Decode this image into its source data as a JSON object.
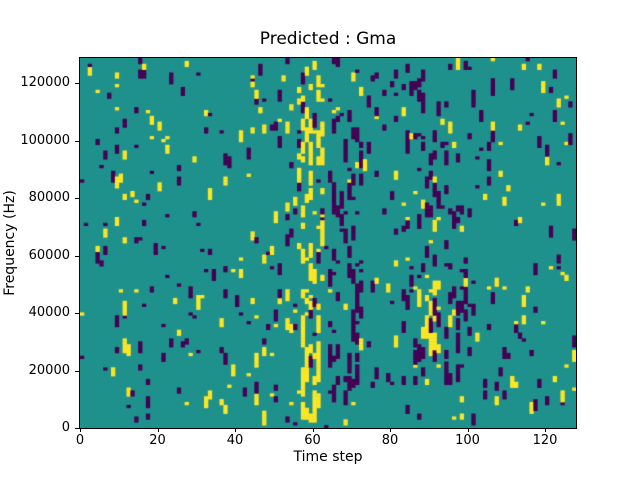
{
  "chart_data": {
    "type": "heatmap",
    "title": "Predicted : Gma",
    "xlabel": "Time step",
    "ylabel": "Frequency (Hz)",
    "xlim": [
      0,
      128
    ],
    "ylim": [
      0,
      128700
    ],
    "x_ticks": [
      0,
      20,
      40,
      60,
      80,
      100,
      120
    ],
    "y_ticks": [
      0,
      20000,
      40000,
      60000,
      80000,
      100000,
      120000
    ],
    "grid": {
      "cols": 128,
      "rows": 128
    },
    "colormap": {
      "name": "viridis-ternary",
      "low": "#440154",
      "mid": "#1f918d",
      "high": "#fde725"
    },
    "values_legend": "ternary mask: mid = background, high = yellow active cells, low = dark purple cells",
    "seed": 1337,
    "noise": {
      "yellow_density": 0.025,
      "purple_density": 0.03,
      "mean_run": 2
    },
    "bands": [
      {
        "name": "yellow-burst-core",
        "cols": [
          57,
          61
        ],
        "rows": [
          0,
          45
        ],
        "value": "high",
        "density": 0.88,
        "mean_run": 5
      },
      {
        "name": "yellow-burst-upper",
        "cols": [
          56,
          62
        ],
        "rows": [
          45,
          118
        ],
        "value": "high",
        "density": 0.3,
        "mean_run": 3
      },
      {
        "name": "purple-cluster",
        "cols": [
          64,
          72
        ],
        "rows": [
          5,
          113
        ],
        "value": "low",
        "density": 0.26,
        "mean_run": 4
      },
      {
        "name": "purple-line",
        "cols": [
          83,
          87
        ],
        "rows": [
          10,
          120
        ],
        "value": "low",
        "density": 0.15,
        "mean_run": 3
      },
      {
        "name": "yellow-patch",
        "cols": [
          87,
          92
        ],
        "rows": [
          25,
          50
        ],
        "value": "high",
        "density": 0.25,
        "mean_run": 3
      },
      {
        "name": "purple-sparse-right",
        "cols": [
          88,
          100
        ],
        "rows": [
          15,
          115
        ],
        "value": "low",
        "density": 0.1,
        "mean_run": 3
      }
    ]
  }
}
